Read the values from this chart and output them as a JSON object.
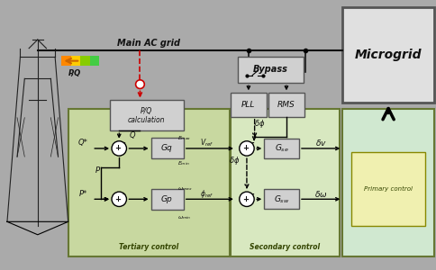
{
  "bg_color": "#aaaaaa",
  "colors": {
    "tertiary_bg": "#c8d8a0",
    "secondary_bg": "#d8e8c0",
    "primary_bg": "#d0e8d0",
    "primary_inner": "#f0f0b0",
    "microgrid_bg": "#e0e0e0",
    "pq_box": "#d0d0d0",
    "block_gray": "#d0d0d0",
    "bypass_bg": "#d0d0d0",
    "wire": "#111111"
  },
  "labels": {
    "main_ac_grid": "Main AC grid",
    "bypass": "Bypass",
    "microgrid": "Microgrid",
    "pq_calc": "P/Q\ncalculation",
    "pq_arrow": "P,Q",
    "pll": "PLL",
    "rms": "RMS",
    "gq": "Gq",
    "gp": "Gp",
    "tertiary": "Tertiary control",
    "secondary": "Secondary control",
    "primary": "Primary control",
    "emax": "E_max",
    "emin": "E_min",
    "wmax": "ω_max",
    "wmin": "ω_min",
    "vref": "V_ref",
    "phi_ref": "φ_ref",
    "delta_phi": "δφ",
    "delta_v": "δv",
    "delta_w": "δω",
    "Q_star": "Q*",
    "P_star": "P*",
    "Q_label": "Q",
    "P_label": "P"
  }
}
